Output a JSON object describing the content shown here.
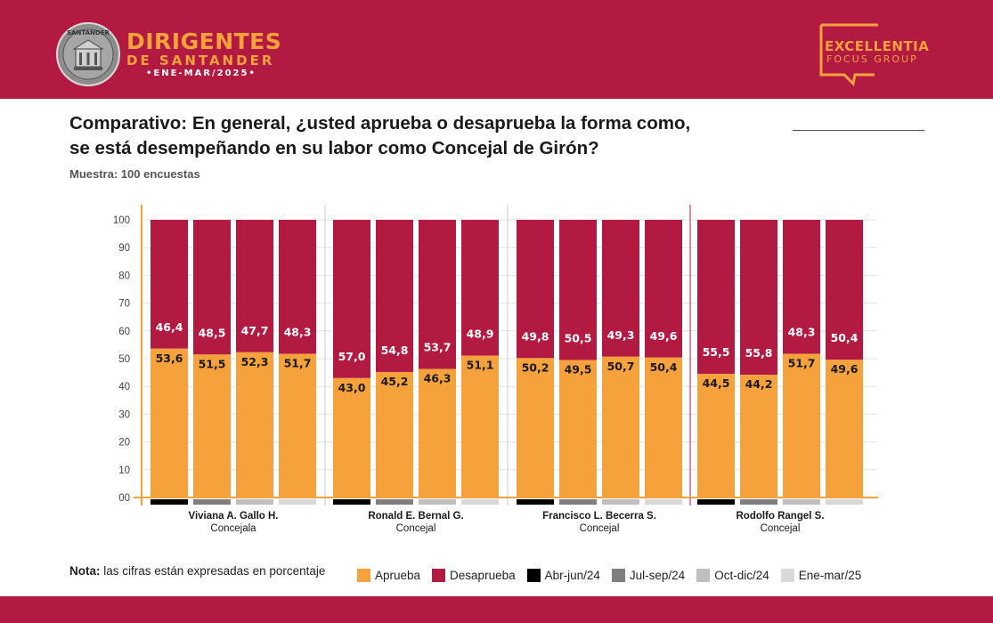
{
  "header": {
    "brand_line1": "DIRIGENTES",
    "brand_line2": "DE SANTANDER",
    "brand_line3": "•ENE-MAR/2025•",
    "seal_text": "SANTANDER",
    "partner_line1": "EXCELLENTIA",
    "partner_line2": "FOCUS GROUP"
  },
  "title_line1": "Comparativo: En general, ¿usted aprueba o desaprueba la forma como,",
  "title_line2": "se está desempeñando en su labor como Concejal de Girón?",
  "sample": "Muestra: 100 encuestas",
  "note_label": "Nota:",
  "note_text": "las cifras están expresadas en porcentaje",
  "colors": {
    "aprueba": "#f5a13c",
    "desaprueba": "#b31a42",
    "periods": [
      "#000000",
      "#7f7f7f",
      "#bfbfbf",
      "#d9d9d9"
    ],
    "brand": "#b31a42"
  },
  "chart_data": {
    "type": "bar",
    "stacked": true,
    "ylim": [
      0,
      100
    ],
    "yticks": [
      "00",
      "10",
      "20",
      "30",
      "40",
      "50",
      "60",
      "70",
      "80",
      "90",
      "100"
    ],
    "periods": [
      "Abr-jun/24",
      "Jul-sep/24",
      "Oct-dic/24",
      "Ene-mar/25"
    ],
    "groups": [
      {
        "name": "Viviana A. Gallo H.",
        "role": "Concejala",
        "aprueba": [
          53.6,
          51.5,
          52.3,
          51.7
        ],
        "desaprueba": [
          46.4,
          48.5,
          47.7,
          48.3
        ]
      },
      {
        "name": "Ronald E. Bernal G.",
        "role": "Concejal",
        "aprueba": [
          43.0,
          45.2,
          46.3,
          51.1
        ],
        "desaprueba": [
          57.0,
          54.8,
          53.7,
          48.9
        ]
      },
      {
        "name": "Francisco L. Becerra S.",
        "role": "Concejal",
        "aprueba": [
          50.2,
          49.5,
          50.7,
          50.4
        ],
        "desaprueba": [
          49.8,
          50.5,
          49.3,
          49.6
        ]
      },
      {
        "name": "Rodolfo Rangel S.",
        "role": "Concejal",
        "aprueba": [
          44.5,
          44.2,
          51.7,
          49.6
        ],
        "desaprueba": [
          55.5,
          55.8,
          48.3,
          50.4
        ]
      }
    ],
    "aprueba_labels": [
      [
        "53,6",
        "51,5",
        "52,3",
        "51,7"
      ],
      [
        "43,0",
        "45,2",
        "46,3",
        "51,1"
      ],
      [
        "50,2",
        "49,5",
        "50,7",
        "50,4"
      ],
      [
        "44,5",
        "44,2",
        "51,7",
        "49,6"
      ]
    ],
    "desaprueba_labels": [
      [
        "46,4",
        "48,5",
        "47,7",
        "48,3"
      ],
      [
        "57,0",
        "54,8",
        "53,7",
        "48,9"
      ],
      [
        "49,8",
        "50,5",
        "49,3",
        "49,6"
      ],
      [
        "55,5",
        "55,8",
        "48,3",
        "50,4"
      ]
    ],
    "legend": [
      "Aprueba",
      "Desaprueba",
      "Abr-jun/24",
      "Jul-sep/24",
      "Oct-dic/24",
      "Ene-mar/25"
    ],
    "grid": true,
    "legend_position": "bottom"
  }
}
